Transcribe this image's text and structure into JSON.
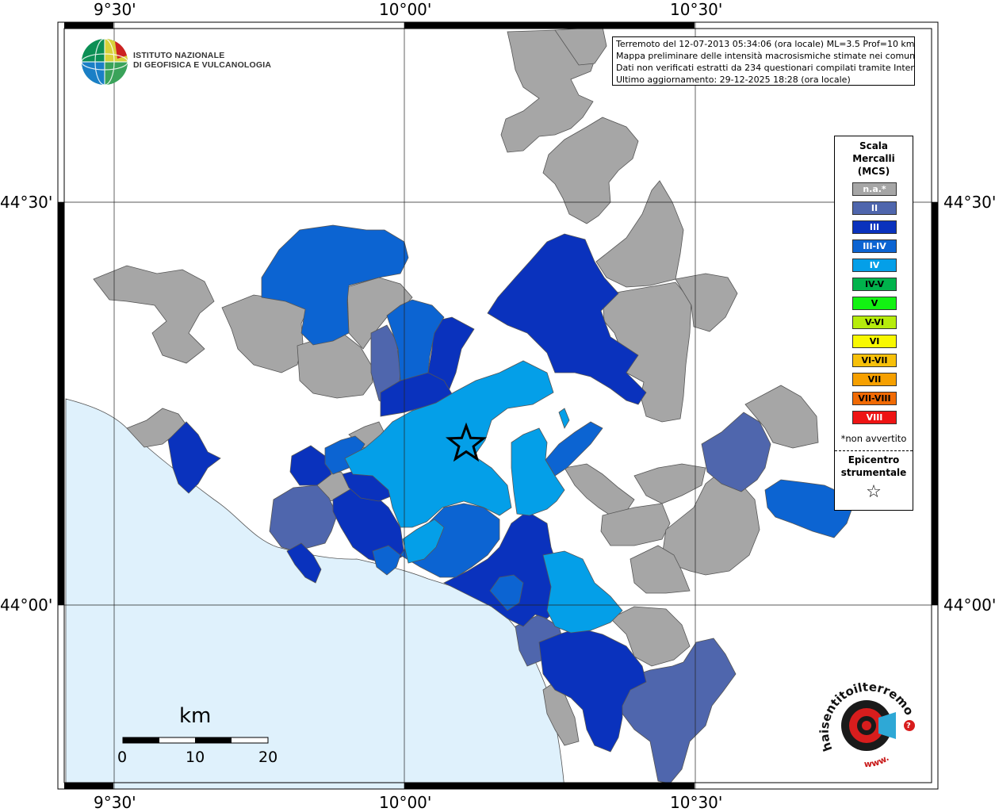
{
  "institute": {
    "name_line1": "ISTITUTO NAZIONALE",
    "name_line2": "DI GEOFISICA E VULCANOLOGIA"
  },
  "info_box": [
    "Terremoto del 12-07-2013 05:34:06 (ora locale) ML=3.5 Prof=10 km",
    "Mappa preliminare delle intensità macrosismiche stimate nei comuni",
    "Dati non verificati estratti da 234 questionari compilati tramite Internet.",
    "Ultimo aggiornamento: 29-12-2025 18:28 (ora locale)"
  ],
  "axes": {
    "lon_labels": [
      "9°30'",
      "10°00'",
      "10°30'"
    ],
    "lat_labels": [
      "44°30'",
      "44°00'"
    ]
  },
  "legend": {
    "title_lines": [
      "Scala",
      "Mercalli",
      "(MCS)"
    ],
    "items": [
      {
        "label": "n.a.*",
        "color": "#a6a6a6",
        "text_color": "#ffffff"
      },
      {
        "label": "II",
        "color": "#4f66ad",
        "text_color": "#ffffff"
      },
      {
        "label": "III",
        "color": "#0a32bd",
        "text_color": "#ffffff"
      },
      {
        "label": "III-IV",
        "color": "#0c64d2",
        "text_color": "#ffffff"
      },
      {
        "label": "IV",
        "color": "#049fe8",
        "text_color": "#ffffff"
      },
      {
        "label": "IV-V",
        "color": "#00b34c",
        "text_color": "#000000"
      },
      {
        "label": "V",
        "color": "#12f212",
        "text_color": "#000000"
      },
      {
        "label": "V-VI",
        "color": "#b6ec0c",
        "text_color": "#000000"
      },
      {
        "label": "VI",
        "color": "#f8f800",
        "text_color": "#000000"
      },
      {
        "label": "VI-VII",
        "color": "#f7c00a",
        "text_color": "#000000"
      },
      {
        "label": "VII",
        "color": "#f6a000",
        "text_color": "#000000"
      },
      {
        "label": "VII-VIII",
        "color": "#f06a05",
        "text_color": "#000000"
      },
      {
        "label": "VIII",
        "color": "#ee1414",
        "text_color": "#ffffff"
      }
    ],
    "note": "*non avvertito",
    "epicenter_lines": [
      "Epicentro",
      "strumentale"
    ],
    "star_symbol": "☆"
  },
  "scale_bar": {
    "unit": "km",
    "ticks": [
      "0",
      "10",
      "20"
    ]
  },
  "haisentito": {
    "text": "haisentitoilterremoto.it",
    "www": "www.",
    "mark": "?"
  },
  "colors": {
    "sea": "#dff1fc",
    "na": "#a6a6a6",
    "II": "#4f66ad",
    "III": "#0a32bd",
    "III-IV": "#0c64d2",
    "IV": "#049fe8"
  }
}
